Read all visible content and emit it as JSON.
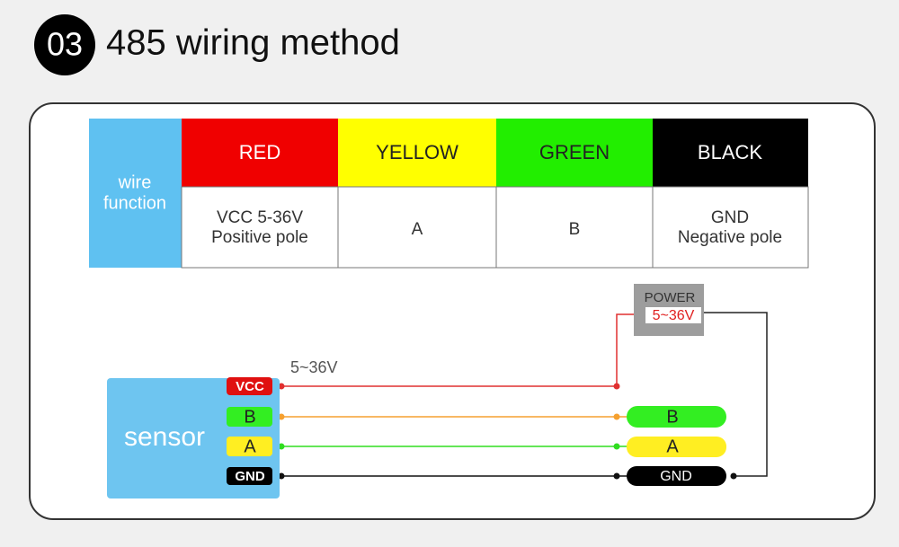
{
  "header": {
    "number": "03",
    "title": "485 wiring method"
  },
  "table": {
    "label_lines": [
      "wire",
      "function"
    ],
    "columns": [
      {
        "wire": "RED",
        "function_lines": [
          "VCC 5-36V",
          "Positive pole"
        ]
      },
      {
        "wire": "YELLOW",
        "function_lines": [
          "A"
        ]
      },
      {
        "wire": "GREEN",
        "function_lines": [
          "B"
        ]
      },
      {
        "wire": "BLACK",
        "function_lines": [
          "GND",
          "Negative pole"
        ]
      }
    ]
  },
  "diagram": {
    "sensor": "sensor",
    "pins": [
      "VCC",
      "B",
      "A",
      "GND"
    ],
    "terminals": [
      "B",
      "A",
      "GND"
    ],
    "supply_label": "5~36V",
    "power": {
      "label": "POWER",
      "voltage": "5~36V"
    }
  }
}
